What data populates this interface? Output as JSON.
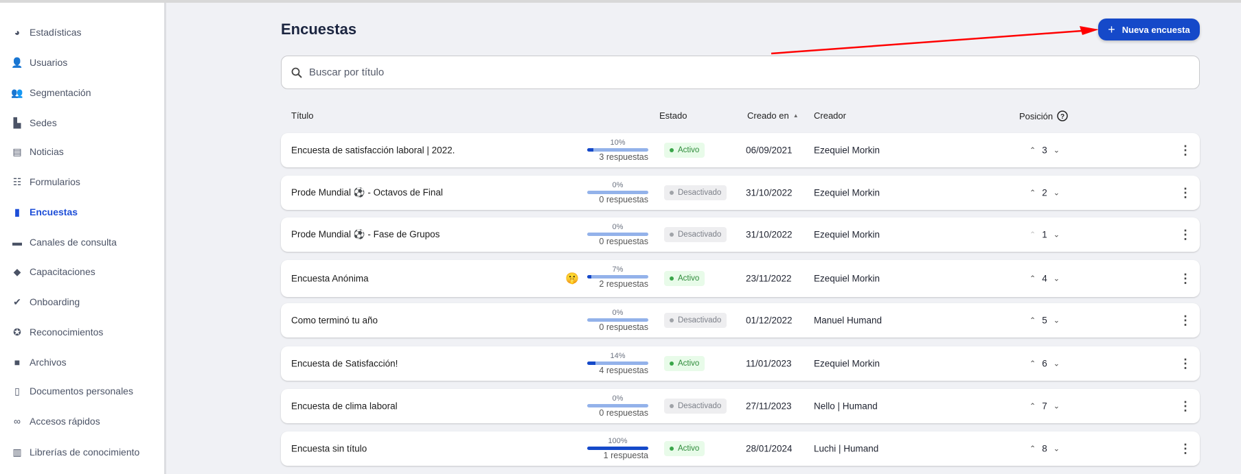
{
  "sidebar": {
    "items": [
      {
        "label": "Estadísticas",
        "icon": "pie-chart-icon"
      },
      {
        "label": "Usuarios",
        "icon": "user-icon"
      },
      {
        "label": "Segmentación",
        "icon": "group-icon"
      },
      {
        "label": "Sedes",
        "icon": "buildings-icon"
      },
      {
        "label": "Noticias",
        "icon": "newspaper-icon"
      },
      {
        "label": "Formularios",
        "icon": "form-icon"
      },
      {
        "label": "Encuestas",
        "icon": "bar-chart-icon",
        "active": true
      },
      {
        "label": "Canales de consulta",
        "icon": "chat-icon"
      },
      {
        "label": "Capacitaciones",
        "icon": "graduation-cap-icon"
      },
      {
        "label": "Onboarding",
        "icon": "checked-document-icon"
      },
      {
        "label": "Reconocimientos",
        "icon": "award-icon"
      },
      {
        "label": "Archivos",
        "icon": "folder-icon"
      },
      {
        "label": "Documentos personales",
        "icon": "document-icon"
      },
      {
        "label": "Accesos rápidos",
        "icon": "link-icon"
      },
      {
        "label": "Librerías de conocimiento",
        "icon": "book-icon"
      }
    ]
  },
  "page": {
    "title": "Encuestas",
    "new_button": "Nueva encuesta",
    "search_placeholder": "Buscar por título"
  },
  "table": {
    "headers": {
      "title": "Título",
      "status": "Estado",
      "created": "Creado en",
      "creator": "Creador",
      "position": "Posición"
    },
    "rows": [
      {
        "title": "Encuesta de satisfacción laboral | 2022.",
        "percent": "10%",
        "fill": 10,
        "responses": "3 respuestas",
        "status": "Activo",
        "created": "06/09/2021",
        "creator": "Ezequiel Morkin",
        "position": "3"
      },
      {
        "title": "Prode Mundial ⚽ - Octavos de Final",
        "percent": "0%",
        "fill": 0,
        "responses": "0 respuestas",
        "status": "Desactivado",
        "created": "31/10/2022",
        "creator": "Ezequiel Morkin",
        "position": "2"
      },
      {
        "title": "Prode Mundial ⚽ - Fase de Grupos",
        "percent": "0%",
        "fill": 0,
        "responses": "0 respuestas",
        "status": "Desactivado",
        "created": "31/10/2022",
        "creator": "Ezequiel Morkin",
        "position": "1",
        "up_disabled": true
      },
      {
        "title": "Encuesta Anónima",
        "emoji": "🤫",
        "percent": "7%",
        "fill": 7,
        "responses": "2 respuestas",
        "status": "Activo",
        "created": "23/11/2022",
        "creator": "Ezequiel Morkin",
        "position": "4"
      },
      {
        "title": "Como terminó tu año",
        "percent": "0%",
        "fill": 0,
        "responses": "0 respuestas",
        "status": "Desactivado",
        "created": "01/12/2022",
        "creator": "Manuel Humand",
        "position": "5"
      },
      {
        "title": "Encuesta de Satisfacción!",
        "percent": "14%",
        "fill": 14,
        "responses": "4 respuestas",
        "status": "Activo",
        "created": "11/01/2023",
        "creator": "Ezequiel Morkin",
        "position": "6"
      },
      {
        "title": "Encuesta de clima laboral",
        "percent": "0%",
        "fill": 0,
        "responses": "0 respuestas",
        "status": "Desactivado",
        "created": "27/11/2023",
        "creator": "Nello | Humand",
        "position": "7"
      },
      {
        "title": "Encuesta sin título",
        "percent": "100%",
        "fill": 100,
        "responses": "1 respuesta",
        "status": "Activo",
        "created": "28/01/2024",
        "creator": "Luchi | Humand",
        "position": "8"
      }
    ]
  },
  "colors": {
    "accent": "#1549c9",
    "active_bg": "#e8fbe9",
    "active_text": "#2e8b3a",
    "inactive_bg": "#eeeef0",
    "inactive_text": "#7b7f88",
    "annotation_arrow": "#ff0000"
  }
}
